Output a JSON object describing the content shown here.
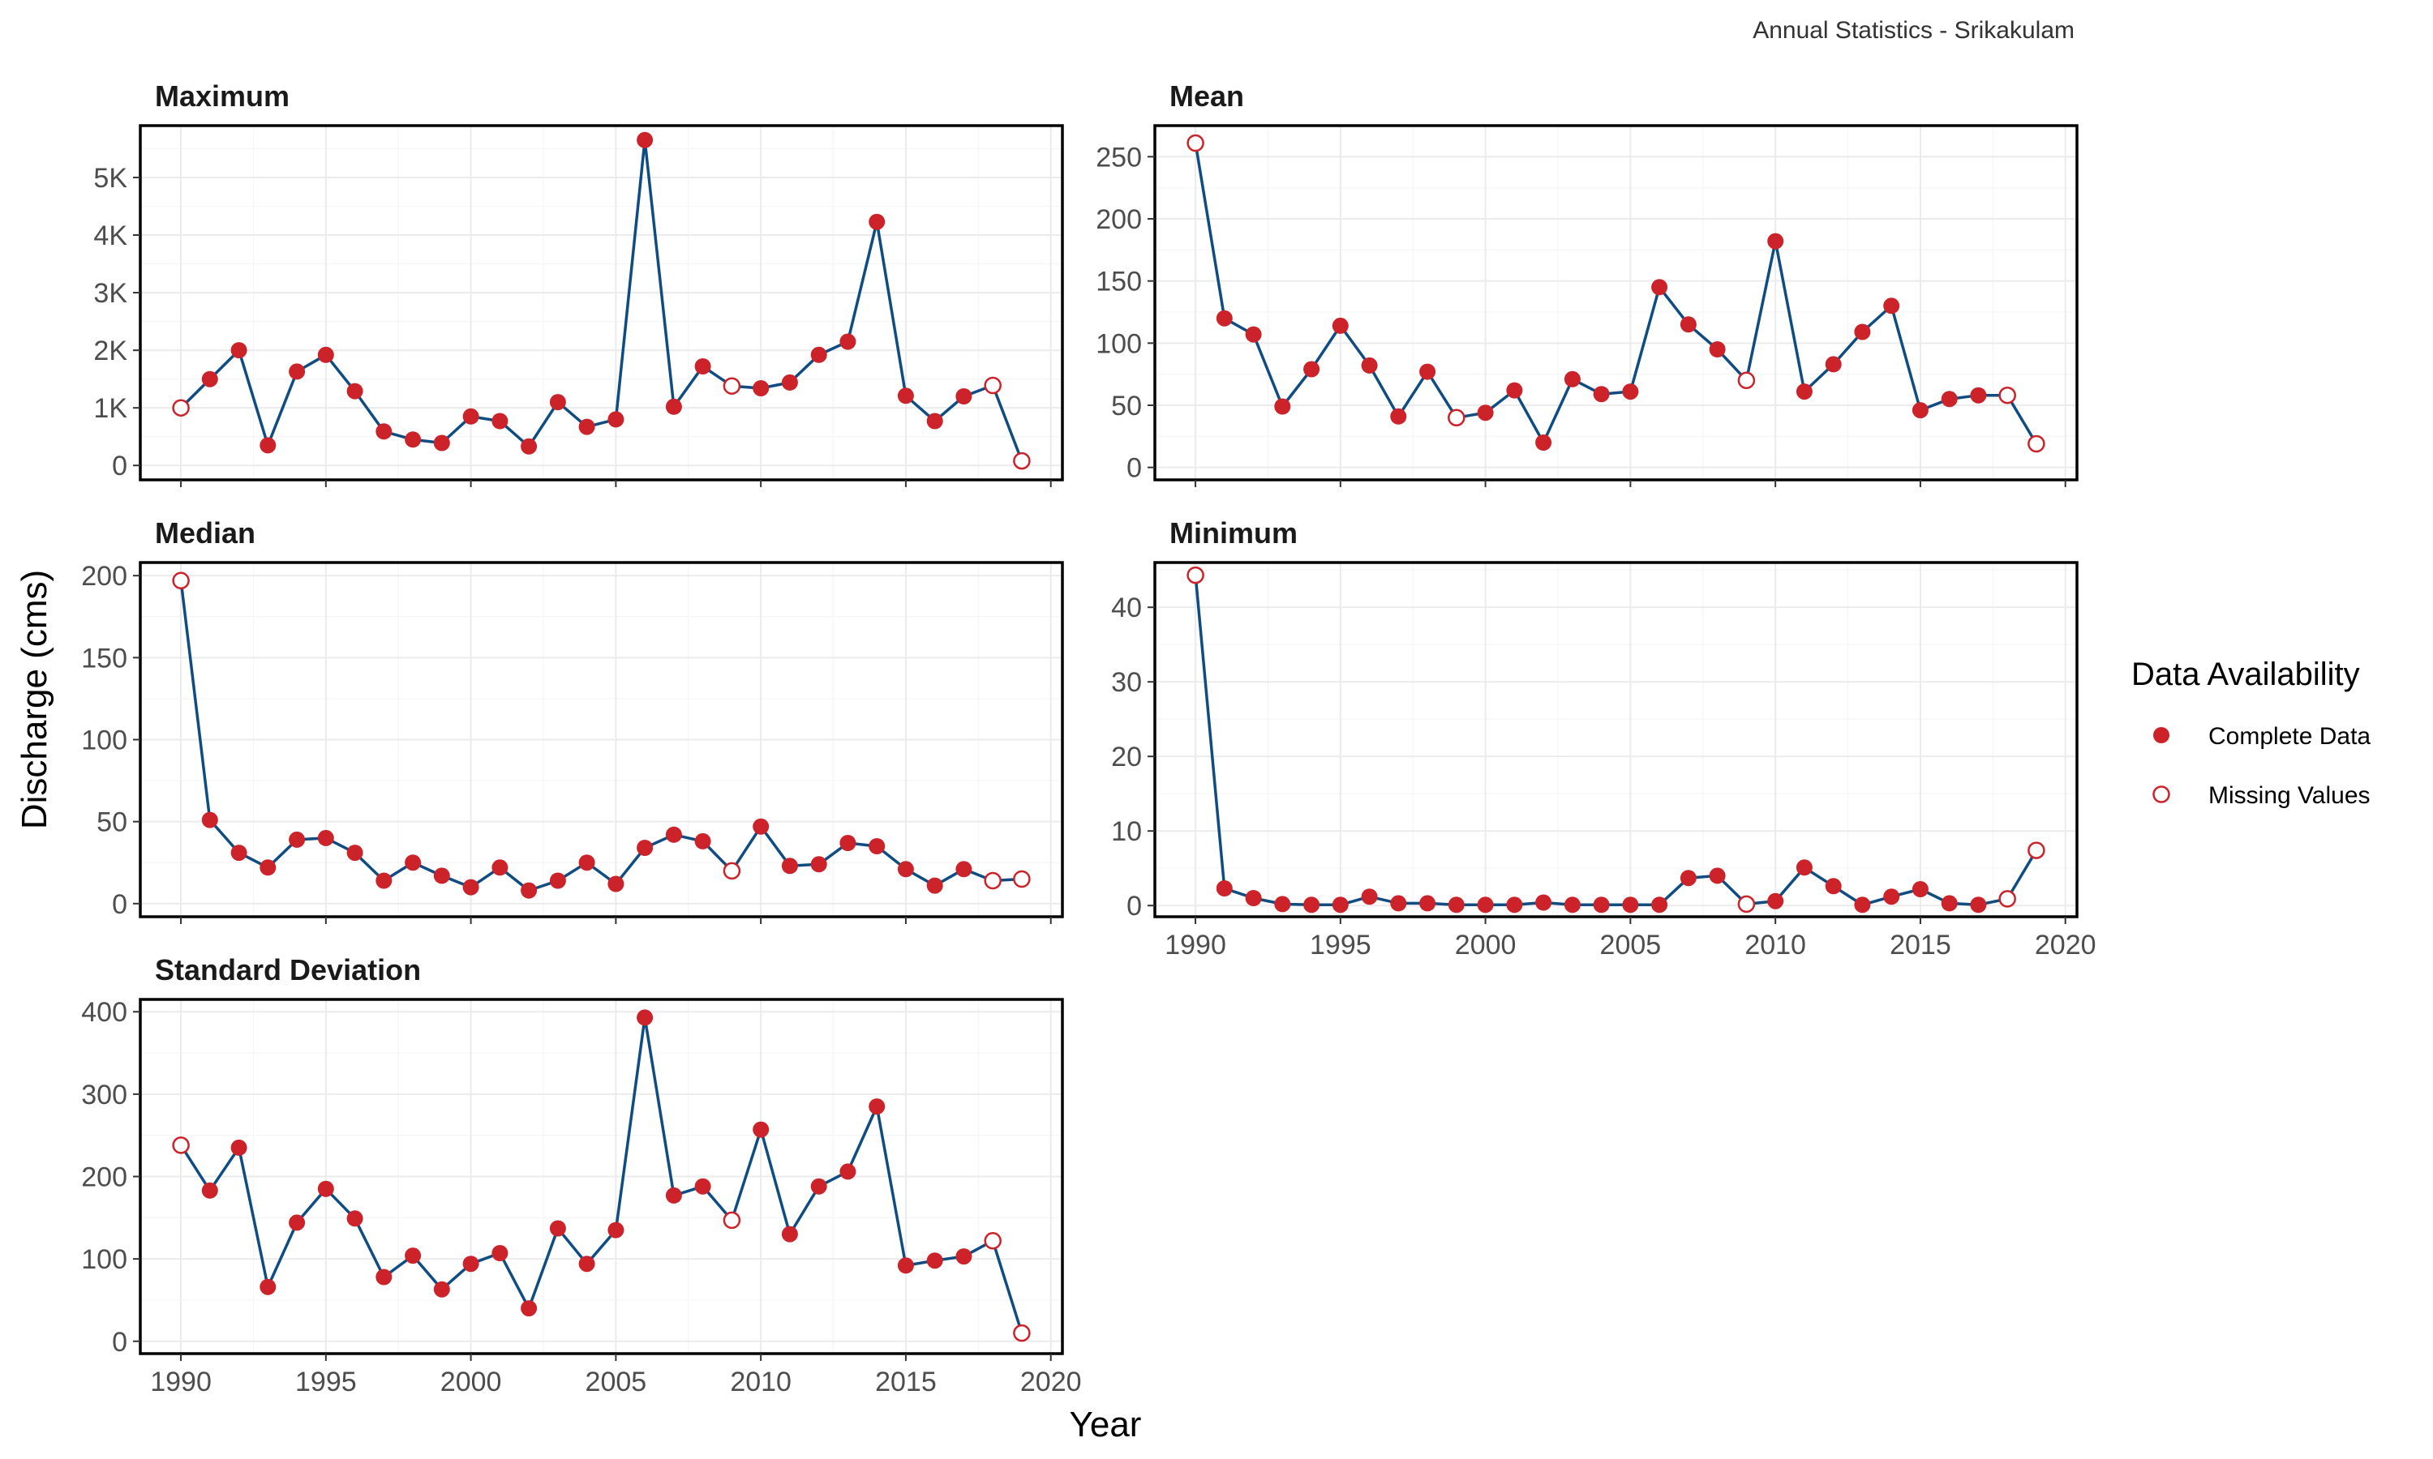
{
  "caption": "Annual Statistics - Srikakulam",
  "colors": {
    "line": "#0f4c81",
    "point": "#cc2229",
    "frame": "#000000",
    "grid": "#ebebeb"
  },
  "axes": {
    "xlabel": "Year",
    "ylabel": "Discharge (cms)"
  },
  "legend": {
    "title": "Data Availability",
    "position": "right",
    "items": [
      {
        "label": "Complete Data",
        "marker": "filled-circle"
      },
      {
        "label": "Missing Values",
        "marker": "open-circle"
      }
    ]
  },
  "chart_data": [
    {
      "type": "line",
      "title": "Maximum",
      "xlim": [
        1988.6,
        2020.4
      ],
      "ylim": [
        -250,
        5900
      ],
      "xticks": [
        1990,
        1995,
        2000,
        2005,
        2010,
        2015,
        2020
      ],
      "show_x_tick_labels": false,
      "yticks": [
        0,
        1000,
        2000,
        3000,
        4000,
        5000
      ],
      "ytick_labels": [
        "0",
        "1K",
        "2K",
        "3K",
        "4K",
        "5K"
      ],
      "grid": true,
      "x": [
        1990,
        1991,
        1992,
        1993,
        1994,
        1995,
        1996,
        1997,
        1998,
        1999,
        2000,
        2001,
        2002,
        2003,
        2004,
        2005,
        2006,
        2007,
        2008,
        2009,
        2010,
        2011,
        2012,
        2013,
        2014,
        2015,
        2016,
        2017,
        2018,
        2019
      ],
      "values": [
        1000,
        1500,
        2000,
        350,
        1630,
        1920,
        1290,
        590,
        450,
        390,
        850,
        770,
        330,
        1100,
        670,
        800,
        5650,
        1020,
        1720,
        1380,
        1340,
        1440,
        1920,
        2150,
        4230,
        1210,
        770,
        1200,
        1390,
        80
      ],
      "missing": [
        1,
        0,
        0,
        0,
        0,
        0,
        0,
        0,
        0,
        0,
        0,
        0,
        0,
        0,
        0,
        0,
        0,
        0,
        0,
        1,
        0,
        0,
        0,
        0,
        0,
        0,
        0,
        0,
        1,
        1
      ]
    },
    {
      "type": "line",
      "title": "Mean",
      "xlim": [
        1988.6,
        2020.4
      ],
      "ylim": [
        -10,
        275
      ],
      "xticks": [
        1990,
        1995,
        2000,
        2005,
        2010,
        2015,
        2020
      ],
      "show_x_tick_labels": false,
      "yticks": [
        0,
        50,
        100,
        150,
        200,
        250
      ],
      "ytick_labels": [
        "0",
        "50",
        "100",
        "150",
        "200",
        "250"
      ],
      "grid": true,
      "x": [
        1990,
        1991,
        1992,
        1993,
        1994,
        1995,
        1996,
        1997,
        1998,
        1999,
        2000,
        2001,
        2002,
        2003,
        2004,
        2005,
        2006,
        2007,
        2008,
        2009,
        2010,
        2011,
        2012,
        2013,
        2014,
        2015,
        2016,
        2017,
        2018,
        2019
      ],
      "values": [
        261,
        120,
        107,
        49,
        79,
        114,
        82,
        41,
        77,
        40,
        44,
        62,
        20,
        71,
        59,
        61,
        145,
        115,
        95,
        70,
        182,
        61,
        83,
        109,
        130,
        46,
        55,
        58,
        58,
        19
      ],
      "missing": [
        1,
        0,
        0,
        0,
        0,
        0,
        0,
        0,
        0,
        1,
        0,
        0,
        0,
        0,
        0,
        0,
        0,
        0,
        0,
        1,
        0,
        0,
        0,
        0,
        0,
        0,
        0,
        0,
        1,
        1
      ]
    },
    {
      "type": "line",
      "title": "Median",
      "xlim": [
        1988.6,
        2020.4
      ],
      "ylim": [
        -8,
        208
      ],
      "xticks": [
        1990,
        1995,
        2000,
        2005,
        2010,
        2015,
        2020
      ],
      "show_x_tick_labels": false,
      "yticks": [
        0,
        50,
        100,
        150,
        200
      ],
      "ytick_labels": [
        "0",
        "50",
        "100",
        "150",
        "200"
      ],
      "grid": true,
      "x": [
        1990,
        1991,
        1992,
        1993,
        1994,
        1995,
        1996,
        1997,
        1998,
        1999,
        2000,
        2001,
        2002,
        2003,
        2004,
        2005,
        2006,
        2007,
        2008,
        2009,
        2010,
        2011,
        2012,
        2013,
        2014,
        2015,
        2016,
        2017,
        2018,
        2019
      ],
      "values": [
        197,
        51,
        31,
        22,
        39,
        40,
        31,
        14,
        25,
        17,
        10,
        22,
        8,
        14,
        25,
        12,
        34,
        42,
        38,
        20,
        47,
        23,
        24,
        37,
        35,
        21,
        11,
        21,
        14,
        15
      ],
      "missing": [
        1,
        0,
        0,
        0,
        0,
        0,
        0,
        0,
        0,
        0,
        0,
        0,
        0,
        0,
        0,
        0,
        0,
        0,
        0,
        1,
        0,
        0,
        0,
        0,
        0,
        0,
        0,
        0,
        1,
        1
      ]
    },
    {
      "type": "line",
      "title": "Minimum",
      "xlim": [
        1988.6,
        2020.4
      ],
      "ylim": [
        -1.5,
        46
      ],
      "xticks": [
        1990,
        1995,
        2000,
        2005,
        2010,
        2015,
        2020
      ],
      "xtick_labels": [
        "1990",
        "1995",
        "2000",
        "2005",
        "2010",
        "2015",
        "2020"
      ],
      "show_x_tick_labels": true,
      "yticks": [
        0,
        10,
        20,
        30,
        40
      ],
      "ytick_labels": [
        "0",
        "10",
        "20",
        "30",
        "40"
      ],
      "grid": true,
      "x": [
        1990,
        1991,
        1992,
        1993,
        1994,
        1995,
        1996,
        1997,
        1998,
        1999,
        2000,
        2001,
        2002,
        2003,
        2004,
        2005,
        2006,
        2007,
        2008,
        2009,
        2010,
        2011,
        2012,
        2013,
        2014,
        2015,
        2016,
        2017,
        2018,
        2019
      ],
      "values": [
        44.3,
        2.3,
        1.0,
        0.2,
        0.1,
        0.1,
        1.2,
        0.3,
        0.3,
        0.1,
        0.1,
        0.1,
        0.4,
        0.1,
        0.1,
        0.1,
        0.1,
        3.7,
        4.0,
        0.2,
        0.6,
        5.1,
        2.6,
        0.1,
        1.2,
        2.2,
        0.3,
        0.1,
        0.9,
        7.4
      ],
      "missing": [
        1,
        0,
        0,
        0,
        0,
        0,
        0,
        0,
        0,
        0,
        0,
        0,
        0,
        0,
        0,
        0,
        0,
        0,
        0,
        1,
        0,
        0,
        0,
        0,
        0,
        0,
        0,
        0,
        1,
        1
      ]
    },
    {
      "type": "line",
      "title": "Standard Deviation",
      "xlim": [
        1988.6,
        2020.4
      ],
      "ylim": [
        -15,
        415
      ],
      "xticks": [
        1990,
        1995,
        2000,
        2005,
        2010,
        2015,
        2020
      ],
      "xtick_labels": [
        "1990",
        "1995",
        "2000",
        "2005",
        "2010",
        "2015",
        "2020"
      ],
      "show_x_tick_labels": true,
      "yticks": [
        0,
        100,
        200,
        300,
        400
      ],
      "ytick_labels": [
        "0",
        "100",
        "200",
        "300",
        "400"
      ],
      "grid": true,
      "x": [
        1990,
        1991,
        1992,
        1993,
        1994,
        1995,
        1996,
        1997,
        1998,
        1999,
        2000,
        2001,
        2002,
        2003,
        2004,
        2005,
        2006,
        2007,
        2008,
        2009,
        2010,
        2011,
        2012,
        2013,
        2014,
        2015,
        2016,
        2017,
        2018,
        2019
      ],
      "values": [
        238,
        183,
        235,
        66,
        144,
        185,
        149,
        78,
        104,
        63,
        94,
        107,
        40,
        137,
        94,
        135,
        393,
        177,
        188,
        147,
        257,
        130,
        188,
        206,
        285,
        92,
        98,
        103,
        122,
        10
      ],
      "missing": [
        1,
        0,
        0,
        0,
        0,
        0,
        0,
        0,
        0,
        0,
        0,
        0,
        0,
        0,
        0,
        0,
        0,
        0,
        0,
        1,
        0,
        0,
        0,
        0,
        0,
        0,
        0,
        0,
        1,
        1
      ]
    }
  ]
}
